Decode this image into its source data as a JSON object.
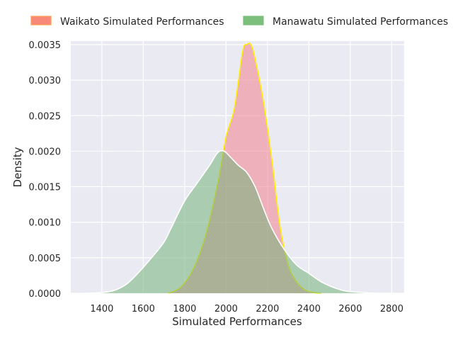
{
  "chart_data": {
    "type": "area",
    "title": "",
    "xlabel": "Simulated Performances",
    "ylabel": "Density",
    "xlim": [
      1250,
      2860
    ],
    "ylim": [
      0,
      0.00355
    ],
    "xticks": [
      1400,
      1600,
      1800,
      2000,
      2200,
      2400,
      2600,
      2800
    ],
    "yticks": [
      0,
      0.0005,
      0.001,
      0.0015,
      0.002,
      0.0025,
      0.003,
      0.0035
    ],
    "xtick_labels": [
      "1400",
      "1600",
      "1800",
      "2000",
      "2200",
      "2400",
      "2600",
      "2800"
    ],
    "ytick_labels": [
      "0.0000",
      "0.0005",
      "0.0010",
      "0.0015",
      "0.0020",
      "0.0025",
      "0.0030",
      "0.0035"
    ],
    "grid": true,
    "legend_position": "top-center",
    "series": [
      {
        "name": "Waikato Simulated Performances",
        "fill": "#f0808c",
        "edge": "#ffee00",
        "legend_swatch": "#f88878",
        "legend_edge": "#ff9f50",
        "x": [
          1720,
          1780,
          1840,
          1900,
          1960,
          2000,
          2040,
          2080,
          2100,
          2120,
          2140,
          2180,
          2220,
          2260,
          2300,
          2340,
          2380,
          2420,
          2460
        ],
        "y": [
          0,
          8e-05,
          0.00033,
          0.0008,
          0.00155,
          0.0022,
          0.0026,
          0.0034,
          0.0035,
          0.0035,
          0.0033,
          0.0027,
          0.0019,
          0.00095,
          0.0004,
          0.00016,
          5e-05,
          1e-05,
          0
        ]
      },
      {
        "name": "Manawatu Simulated Performances",
        "fill": "#74b27a",
        "edge": "#ffffff",
        "legend_swatch": "#7cbf7c",
        "legend_edge": "#7cbf7c",
        "x": [
          1320,
          1400,
          1460,
          1520,
          1580,
          1640,
          1700,
          1740,
          1800,
          1860,
          1920,
          1960,
          1990,
          2020,
          2060,
          2100,
          2140,
          2180,
          2220,
          2280,
          2340,
          2400,
          2460,
          2520,
          2580,
          2660,
          2740,
          2820
        ],
        "y": [
          0,
          1e-05,
          4e-05,
          0.00013,
          0.0003,
          0.0005,
          0.00072,
          0.00095,
          0.0013,
          0.00155,
          0.0018,
          0.00198,
          0.002,
          0.00192,
          0.0018,
          0.0017,
          0.0015,
          0.0012,
          0.00092,
          0.00062,
          0.0004,
          0.00028,
          0.00016,
          8e-05,
          3e-05,
          1e-05,
          0,
          0
        ]
      }
    ]
  }
}
